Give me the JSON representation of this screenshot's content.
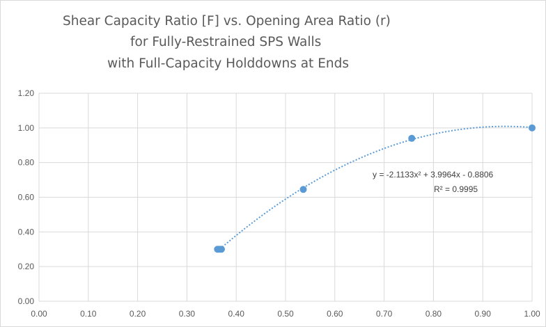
{
  "chart_data": {
    "type": "scatter",
    "title": [
      "Shear Capacity Ratio [F]  vs. Opening Area Ratio (r)",
      "for Fully-Restrained SPS Walls",
      "with Full-Capacity Holddowns at Ends"
    ],
    "xlabel": "",
    "ylabel": "",
    "xlim": [
      0,
      1.0
    ],
    "ylim": [
      0,
      1.2
    ],
    "x_ticks": [
      "0.00",
      "0.10",
      "0.20",
      "0.30",
      "0.40",
      "0.50",
      "0.60",
      "0.70",
      "0.80",
      "0.90",
      "1.00"
    ],
    "y_ticks": [
      "0.00",
      "0.20",
      "0.40",
      "0.60",
      "0.80",
      "1.00",
      "1.20"
    ],
    "grid": true,
    "marker_color": "#5b9bd5",
    "points": [
      {
        "x": 0.362,
        "y": 0.3
      },
      {
        "x": 0.366,
        "y": 0.3
      },
      {
        "x": 0.37,
        "y": 0.3
      },
      {
        "x": 0.536,
        "y": 0.645
      },
      {
        "x": 0.756,
        "y": 0.94
      },
      {
        "x": 1.0,
        "y": 1.0
      }
    ],
    "trendline": {
      "type": "polynomial-2",
      "coefficients": {
        "a": -2.1133,
        "b": 3.9964,
        "c": -0.8806
      },
      "x_range": [
        0.362,
        1.0
      ],
      "equation_label": "y = -2.1133x² + 3.9964x - 0.8806",
      "r2_label": "R² = 0.9995"
    }
  }
}
